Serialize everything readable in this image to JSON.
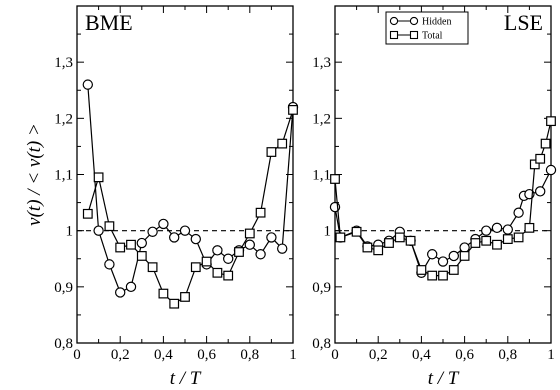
{
  "chart_data": [
    {
      "type": "line",
      "title": "BME",
      "xlabel": "t / T",
      "ylabel": "v(t) / < v(t) >",
      "xlim": [
        0,
        1
      ],
      "ylim": [
        0.8,
        1.4
      ],
      "xticks": [
        "0",
        "0,2",
        "0,4",
        "0,6",
        "0,8",
        "1"
      ],
      "yticks": [
        "0,8",
        "0,9",
        "1",
        "1,1",
        "1,2",
        "1,3"
      ],
      "reference_line": 1.0,
      "series": [
        {
          "marker": "circle",
          "x": [
            0.05,
            0.1,
            0.15,
            0.2,
            0.25,
            0.3,
            0.35,
            0.4,
            0.45,
            0.5,
            0.55,
            0.6,
            0.65,
            0.7,
            0.75,
            0.8,
            0.85,
            0.9,
            0.95,
            1.0
          ],
          "values": [
            1.26,
            1.0,
            0.94,
            0.89,
            0.9,
            0.978,
            0.998,
            1.012,
            0.988,
            1.0,
            0.985,
            0.94,
            0.965,
            0.95,
            0.965,
            0.975,
            0.958,
            0.988,
            0.968,
            1.22
          ]
        },
        {
          "marker": "square",
          "x": [
            0.05,
            0.1,
            0.15,
            0.2,
            0.25,
            0.3,
            0.35,
            0.4,
            0.45,
            0.5,
            0.55,
            0.6,
            0.65,
            0.7,
            0.75,
            0.8,
            0.85,
            0.9,
            0.95,
            1.0
          ],
          "values": [
            1.03,
            1.095,
            1.008,
            0.97,
            0.975,
            0.955,
            0.935,
            0.888,
            0.87,
            0.882,
            0.935,
            0.945,
            0.925,
            0.92,
            0.962,
            0.995,
            1.032,
            1.14,
            1.155,
            1.215
          ]
        }
      ]
    },
    {
      "type": "line",
      "title": "LSE",
      "xlabel": "t / T",
      "ylabel": "",
      "xlim": [
        0,
        1
      ],
      "ylim": [
        0.8,
        1.4
      ],
      "xticks": [
        "0",
        "0,2",
        "0,4",
        "0,6",
        "0,8",
        "1"
      ],
      "yticks": [
        "0,8",
        "0,9",
        "1",
        "1,1",
        "1,2",
        "1,3"
      ],
      "reference_line": 1.0,
      "legend": {
        "position": "top-right"
      },
      "series": [
        {
          "name": "Hidden",
          "marker": "circle",
          "x": [
            0.0,
            0.025,
            0.1,
            0.15,
            0.2,
            0.25,
            0.3,
            0.35,
            0.4,
            0.45,
            0.5,
            0.55,
            0.6,
            0.65,
            0.7,
            0.75,
            0.8,
            0.85,
            0.875,
            0.9,
            0.95,
            1.0
          ],
          "values": [
            1.042,
            0.988,
            1.0,
            0.972,
            0.975,
            0.982,
            0.998,
            0.982,
            0.925,
            0.958,
            0.945,
            0.955,
            0.97,
            0.985,
            1.0,
            1.005,
            1.002,
            1.032,
            1.062,
            1.065,
            1.07,
            1.108
          ]
        },
        {
          "name": "Total",
          "marker": "square",
          "x": [
            0.0,
            0.025,
            0.1,
            0.15,
            0.2,
            0.25,
            0.3,
            0.35,
            0.4,
            0.45,
            0.5,
            0.55,
            0.6,
            0.65,
            0.7,
            0.75,
            0.8,
            0.85,
            0.9,
            0.925,
            0.95,
            0.975,
            1.0
          ],
          "values": [
            1.092,
            0.988,
            0.998,
            0.97,
            0.965,
            0.978,
            0.988,
            0.982,
            0.93,
            0.92,
            0.92,
            0.93,
            0.955,
            0.978,
            0.982,
            0.975,
            0.985,
            0.988,
            1.005,
            1.118,
            1.128,
            1.155,
            1.195
          ]
        }
      ]
    }
  ]
}
